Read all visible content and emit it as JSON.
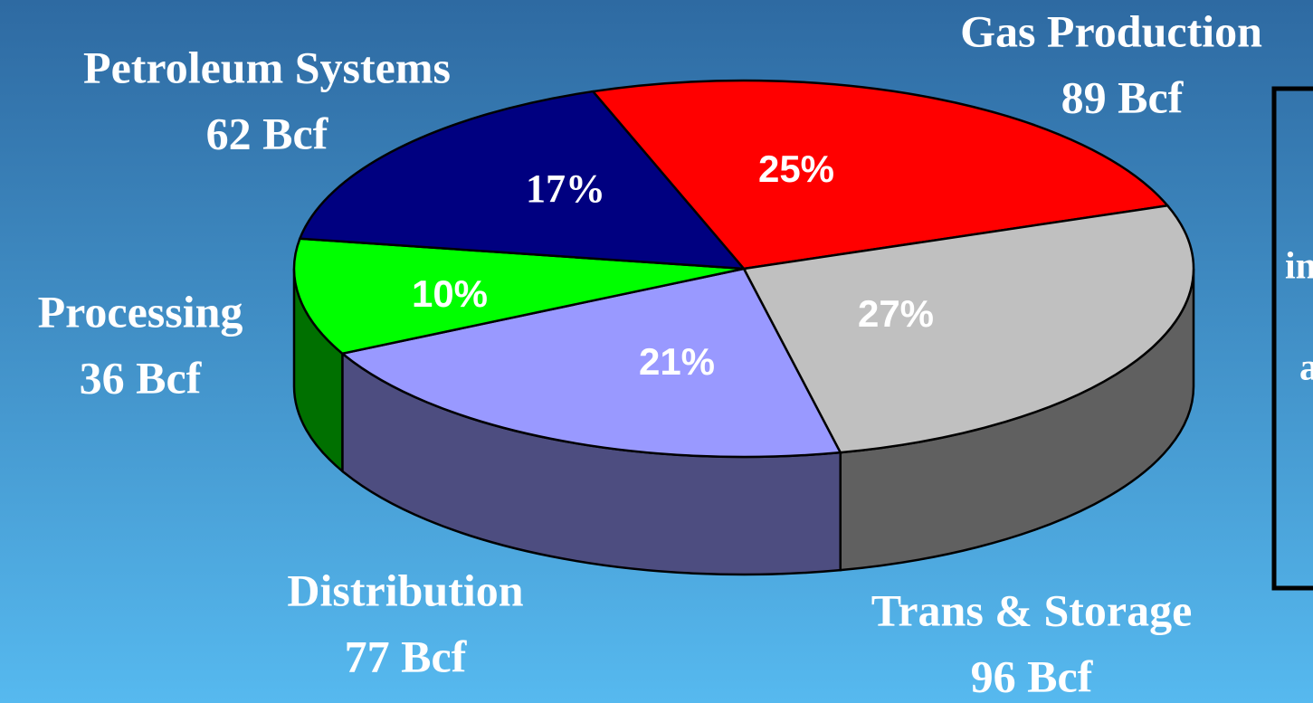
{
  "chart_data": {
    "type": "pie3d",
    "categories": [
      "Gas Production",
      "Trans & Storage",
      "Distribution",
      "Processing",
      "Petroleum Systems"
    ],
    "amount_labels": [
      "89 Bcf",
      "96 Bcf",
      "77 Bcf",
      "36 Bcf",
      "62 Bcf"
    ],
    "values": [
      25,
      27,
      21,
      10,
      17
    ],
    "value_labels": [
      "25%",
      "27%",
      "21%",
      "10%",
      "17%"
    ],
    "colors": [
      "#ff0000",
      "#c0c0c0",
      "#9999ff",
      "#00ff00",
      "#000080"
    ],
    "side_colors": [
      "#800000",
      "#606060",
      "#4d4d80",
      "#007000",
      "#000040"
    ]
  },
  "side_box": {
    "lines": [
      "in",
      "a"
    ]
  }
}
